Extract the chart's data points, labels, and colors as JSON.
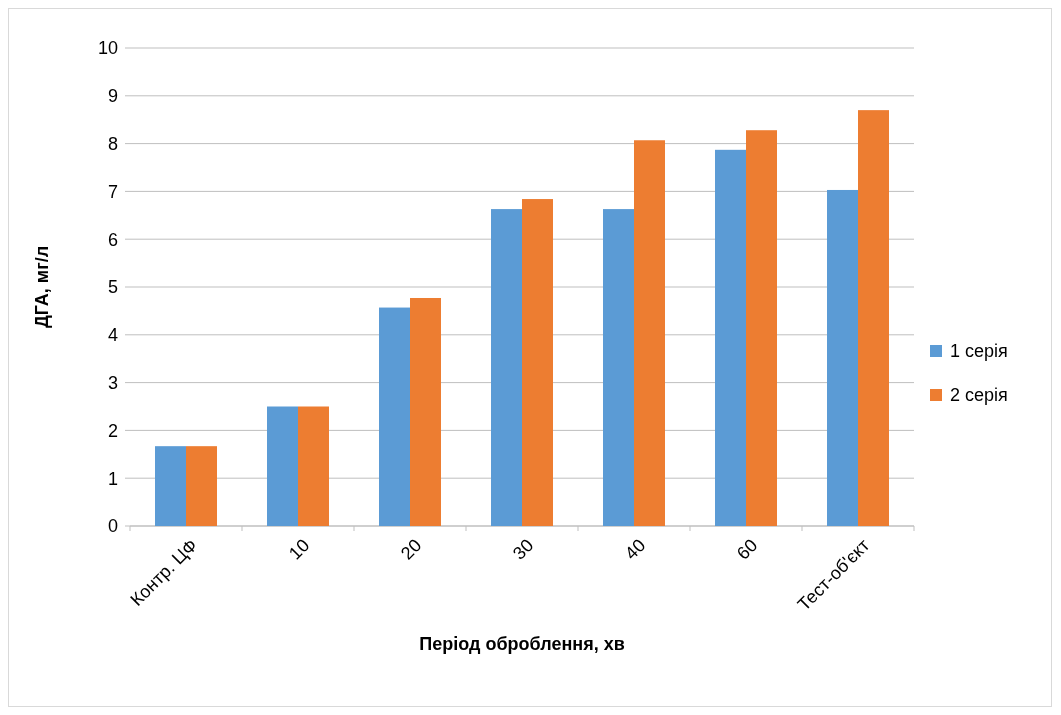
{
  "chart_data": {
    "type": "bar",
    "xlabel": "Період оброблення, хв",
    "ylabel": "ДГА, мг/л",
    "categories": [
      "Контр. ЦФ",
      "10",
      "20",
      "30",
      "40",
      "60",
      "Тест-об'єкт"
    ],
    "series": [
      {
        "name": "1 серія",
        "color": "#5b9bd5",
        "values": [
          1.67,
          2.5,
          4.57,
          6.63,
          6.63,
          7.87,
          7.03
        ]
      },
      {
        "name": "2 серія",
        "color": "#ed7d31",
        "values": [
          1.67,
          2.5,
          4.77,
          6.84,
          8.07,
          8.28,
          8.7
        ]
      }
    ],
    "ylim": [
      0,
      10
    ],
    "yticks": [
      0,
      1,
      2,
      3,
      4,
      5,
      6,
      7,
      8,
      9,
      10
    ],
    "grid": "y",
    "legend": "right"
  }
}
